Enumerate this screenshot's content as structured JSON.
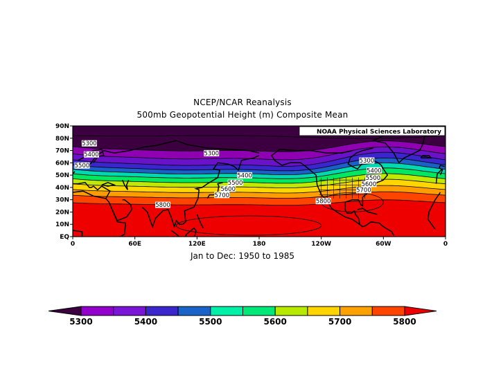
{
  "title": "NCEP/NCAR Reanalysis",
  "subtitle": "500mb Geopotential Height (m) Composite Mean",
  "period": "Jan to Dec: 1950 to 1985",
  "credit": "NOAA Physical Sciences Laboratory",
  "lat_ticks": [
    "90N",
    "80N",
    "70N",
    "60N",
    "50N",
    "40N",
    "30N",
    "20N",
    "10N",
    "EQ"
  ],
  "lon_ticks": [
    "0",
    "60E",
    "120E",
    "180",
    "120W",
    "60W",
    "0"
  ],
  "contour_labels": [
    {
      "text": "5300",
      "lon": 16,
      "lat": 75
    },
    {
      "text": "5400",
      "lon": 18,
      "lat": 66
    },
    {
      "text": "5500",
      "lon": 9,
      "lat": 57
    },
    {
      "text": "5300",
      "lon": 134,
      "lat": 67
    },
    {
      "text": "5400",
      "lon": 166,
      "lat": 49
    },
    {
      "text": "5500",
      "lon": 157,
      "lat": 43
    },
    {
      "text": "5600",
      "lon": 150,
      "lat": 38
    },
    {
      "text": "5700",
      "lon": 144,
      "lat": 33
    },
    {
      "text": "5800",
      "lon": 87,
      "lat": 25
    },
    {
      "text": "5800",
      "lon": 242,
      "lat": 28
    },
    {
      "text": "5300",
      "lon": 284,
      "lat": 61
    },
    {
      "text": "5400",
      "lon": 291,
      "lat": 53
    },
    {
      "text": "5500",
      "lon": 290,
      "lat": 47
    },
    {
      "text": "5600",
      "lon": 286,
      "lat": 42
    },
    {
      "text": "5700",
      "lon": 281,
      "lat": 37
    }
  ],
  "colorbar": {
    "labels": [
      "5300",
      "5400",
      "5500",
      "5600",
      "5700",
      "5800"
    ],
    "colors": [
      "#3c0040",
      "#9200cc",
      "#7a14d6",
      "#3a26cc",
      "#1a63c8",
      "#00f0a8",
      "#00e878",
      "#b8ea00",
      "#ffd400",
      "#ffa100",
      "#ff4400",
      "#ee0000"
    ]
  },
  "map": {
    "levels_m": [
      5300,
      5350,
      5400,
      5450,
      5500,
      5550,
      5600,
      5650,
      5700,
      5750,
      5800
    ],
    "level_colors": [
      "#3c0040",
      "#8f00b2",
      "#6a12c8",
      "#3a26cc",
      "#1a60c6",
      "#00d8b0",
      "#00e860",
      "#c0e800",
      "#ffd600",
      "#ff9c00",
      "#ff4400",
      "#ee0000"
    ]
  }
}
